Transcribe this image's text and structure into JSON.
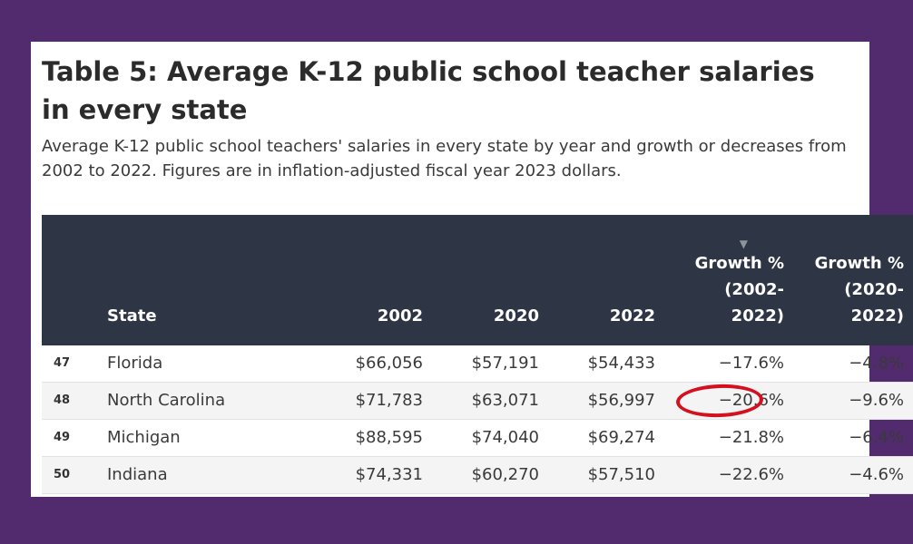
{
  "title": "Table 5: Average K-12 public school teacher salaries in every state",
  "subtitle": "Average K-12 public school teachers' salaries in every state by year and growth or decreases from 2002 to 2022. Figures are in inflation-adjusted fiscal year 2023 dollars.",
  "table": {
    "headers": {
      "rank": "",
      "state": "State",
      "y2002": "2002",
      "y2020": "2020",
      "y2022": "2022",
      "growth_2002_2022": "Growth % (2002-2022)",
      "growth_2020_2022": "Growth % (2020-2022)"
    },
    "sort_icon": "sort-descending-icon",
    "highlight_color": "#d4101e",
    "rows": [
      {
        "rank": "47",
        "state": "Florida",
        "y2002": "$66,056",
        "y2020": "$57,191",
        "y2022": "$54,433",
        "growth_2002_2022": "−17.6%",
        "growth_2020_2022": "−4.8%"
      },
      {
        "rank": "48",
        "state": "North Carolina",
        "y2002": "$71,783",
        "y2020": "$63,071",
        "y2022": "$56,997",
        "growth_2002_2022": "−20.6%",
        "growth_2020_2022": "−9.6%"
      },
      {
        "rank": "49",
        "state": "Michigan",
        "y2002": "$88,595",
        "y2020": "$74,040",
        "y2022": "$69,274",
        "growth_2002_2022": "−21.8%",
        "growth_2020_2022": "−6.4%"
      },
      {
        "rank": "50",
        "state": "Indiana",
        "y2002": "$74,331",
        "y2020": "$60,270",
        "y2022": "$57,510",
        "growth_2002_2022": "−22.6%",
        "growth_2020_2022": "−4.6%"
      }
    ]
  }
}
